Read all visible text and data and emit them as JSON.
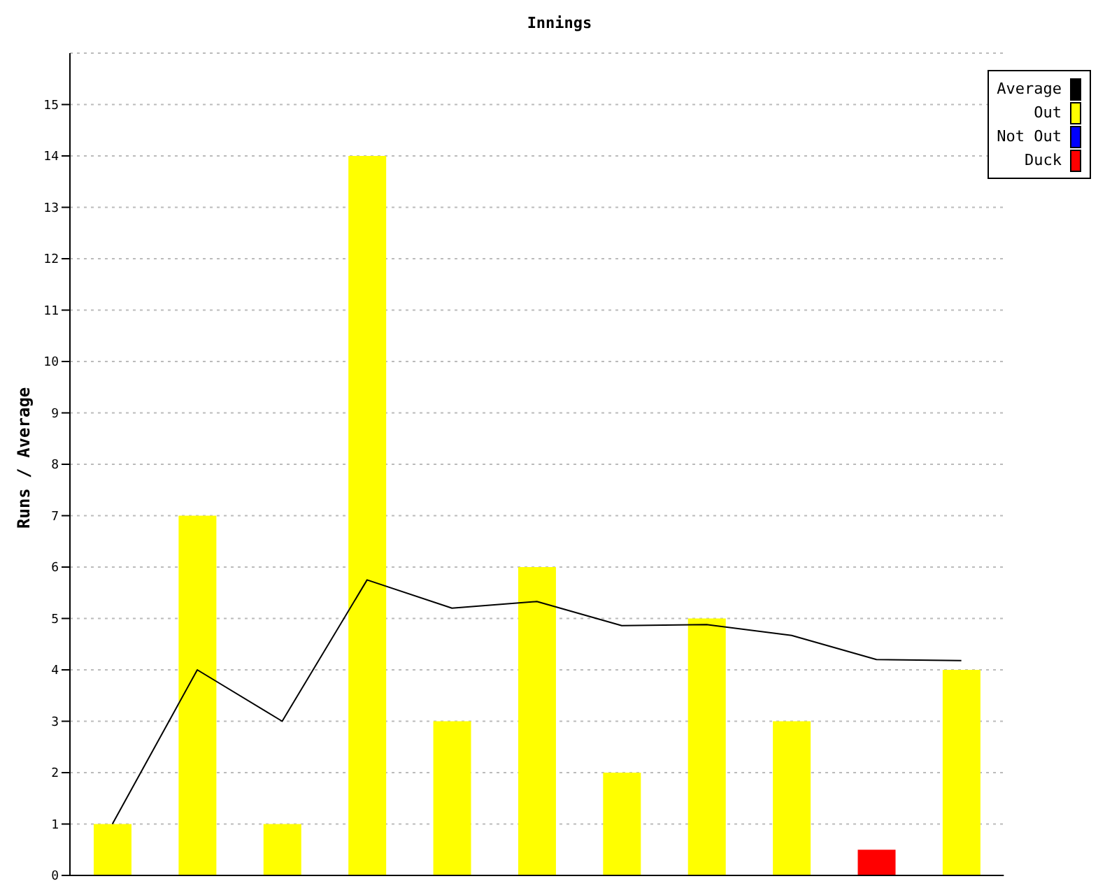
{
  "chart_data": {
    "type": "bar",
    "title": "Innings",
    "ylabel": "Runs / Average",
    "categories": [
      null,
      null,
      null,
      null,
      null,
      null,
      null,
      null,
      null,
      null,
      null
    ],
    "stacked": true,
    "series": [
      {
        "name": "Average",
        "type": "line",
        "color": "#000000",
        "values": [
          1,
          4,
          3,
          5.75,
          5.2,
          5.33,
          4.86,
          4.88,
          4.67,
          4.2,
          4.18
        ]
      },
      {
        "name": "Out",
        "color": "#ffff00",
        "values": [
          1,
          7,
          1,
          14,
          3,
          6,
          2,
          5,
          3,
          null,
          4
        ]
      },
      {
        "name": "Not Out",
        "color": "#0000ff",
        "values": [
          null,
          null,
          null,
          null,
          null,
          null,
          null,
          null,
          null,
          null,
          null
        ]
      },
      {
        "name": "Duck",
        "color": "#ff0000",
        "values": [
          null,
          null,
          null,
          null,
          null,
          null,
          null,
          null,
          null,
          0.5,
          null
        ]
      }
    ],
    "ylim": [
      0,
      16
    ],
    "yticks": [
      0,
      1,
      2,
      3,
      4,
      5,
      6,
      7,
      8,
      9,
      10,
      11,
      12,
      13,
      14,
      15
    ],
    "grid": "y",
    "legend": "top right",
    "tick_labels": "y",
    "marker": "none",
    "line_style": "solid"
  }
}
